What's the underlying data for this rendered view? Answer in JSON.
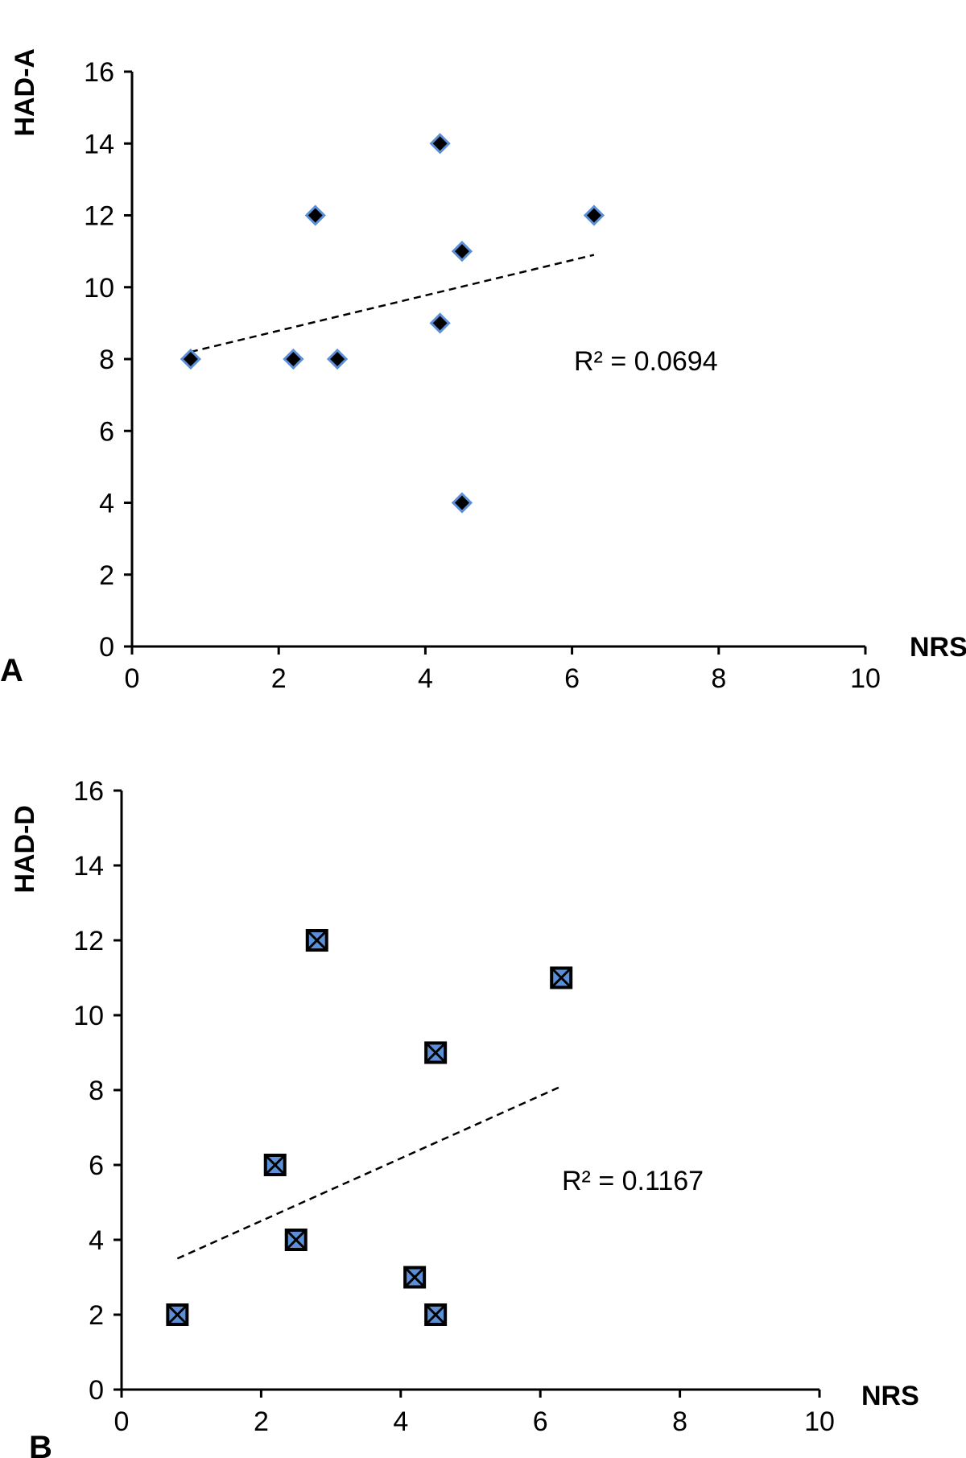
{
  "chart_data": [
    {
      "type": "scatter",
      "panel_label": "A",
      "xlabel": "NRS",
      "ylabel": "HAD-A",
      "xlim": [
        0,
        10
      ],
      "ylim": [
        0,
        16
      ],
      "xticks": [
        0,
        2,
        4,
        6,
        8,
        10
      ],
      "yticks": [
        0,
        2,
        4,
        6,
        8,
        10,
        12,
        14,
        16
      ],
      "marker": "diamond",
      "marker_fill": "#000000",
      "marker_edge": "#5b8fd6",
      "points": [
        {
          "x": 0.8,
          "y": 8
        },
        {
          "x": 2.2,
          "y": 8
        },
        {
          "x": 2.5,
          "y": 12
        },
        {
          "x": 2.8,
          "y": 8
        },
        {
          "x": 4.2,
          "y": 14
        },
        {
          "x": 4.2,
          "y": 9
        },
        {
          "x": 4.5,
          "y": 11
        },
        {
          "x": 4.5,
          "y": 4
        },
        {
          "x": 6.3,
          "y": 12
        }
      ],
      "trendline": {
        "x": [
          0.8,
          6.3
        ],
        "y": [
          8.2,
          10.9
        ]
      },
      "annotation": "R² = 0.0694"
    },
    {
      "type": "scatter",
      "panel_label": "B",
      "xlabel": "NRS",
      "ylabel": "HAD-D",
      "xlim": [
        0,
        10
      ],
      "ylim": [
        0,
        16
      ],
      "xticks": [
        0,
        2,
        4,
        6,
        8,
        10
      ],
      "yticks": [
        0,
        2,
        4,
        6,
        8,
        10,
        12,
        14,
        16
      ],
      "marker": "x-square",
      "marker_fill": "#5b8fd6",
      "marker_edge": "#000000",
      "points": [
        {
          "x": 0.8,
          "y": 2
        },
        {
          "x": 2.2,
          "y": 6
        },
        {
          "x": 2.5,
          "y": 4
        },
        {
          "x": 2.8,
          "y": 12
        },
        {
          "x": 4.2,
          "y": 3
        },
        {
          "x": 4.5,
          "y": 9
        },
        {
          "x": 4.5,
          "y": 2
        },
        {
          "x": 6.3,
          "y": 11
        }
      ],
      "trendline": {
        "x": [
          0.8,
          6.3
        ],
        "y": [
          3.5,
          8.1
        ]
      },
      "annotation": "R² = 0.1167"
    }
  ]
}
